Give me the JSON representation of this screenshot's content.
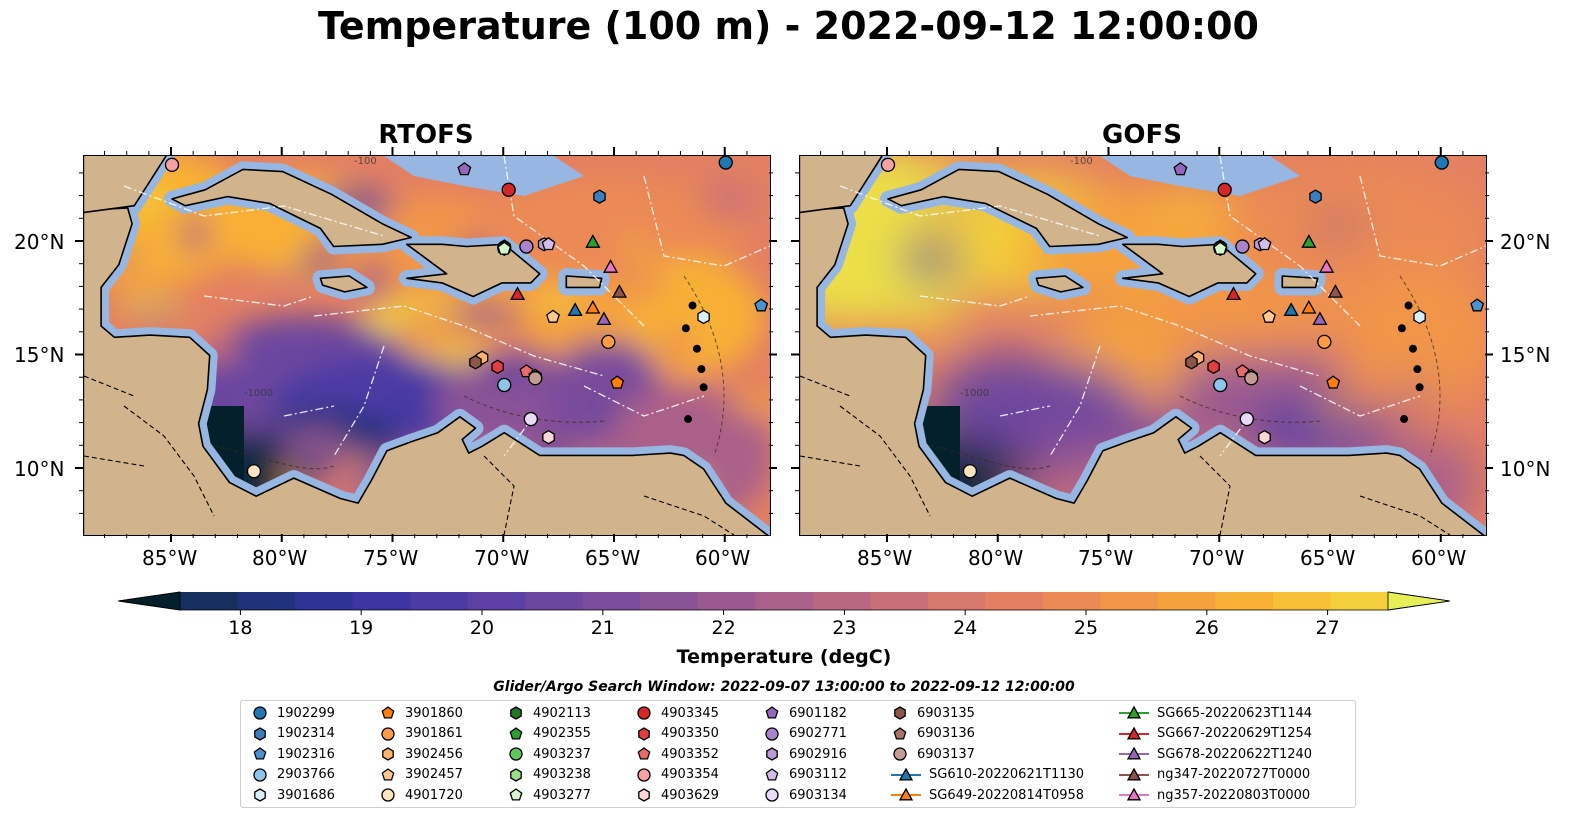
{
  "title": "Temperature (100 m) - 2022-09-12 12:00:00",
  "panels": [
    {
      "title": "RTOFS",
      "style": "rtofs"
    },
    {
      "title": "GOFS",
      "style": "gofs"
    }
  ],
  "map": {
    "lon_ticks": [
      "85°W",
      "80°W",
      "75°W",
      "70°W",
      "65°W",
      "60°W"
    ],
    "lat_ticks": [
      "20°N",
      "15°N",
      "10°N"
    ],
    "land_color": "#d2b48c",
    "shelf_color": "#97b6e1",
    "contour_labels": [
      "-1000",
      "-100"
    ]
  },
  "colorbar": {
    "label": "Temperature (degC)",
    "ticks": [
      "18",
      "19",
      "20",
      "21",
      "22",
      "23",
      "24",
      "25",
      "26",
      "27"
    ],
    "min": 17.5,
    "max": 27.5,
    "extend": "both",
    "colors": [
      "#04202b",
      "#0e2a3f",
      "#172f5e",
      "#22317b",
      "#2f3396",
      "#3d36a2",
      "#4c3ba4",
      "#5c40a3",
      "#6c469f",
      "#7a4c9b",
      "#8a5397",
      "#9a5a90",
      "#aa6189",
      "#b96881",
      "#c86f78",
      "#d7786d",
      "#e38062",
      "#eb8a55",
      "#f19548",
      "#f5a23d",
      "#f7b036",
      "#f6bf35",
      "#f2cf3b",
      "#ecdf47",
      "#e6ef56"
    ]
  },
  "search_window": "Glider/Argo Search Window: 2022-09-07 13:00:00 to 2022-09-12 12:00:00",
  "legend": {
    "columns": [
      [
        {
          "label": "1902299",
          "marker": "circle",
          "color": "#1f77b4"
        },
        {
          "label": "1902314",
          "marker": "hexagon",
          "color": "#3b7fbf"
        },
        {
          "label": "1902316",
          "marker": "pentagon",
          "color": "#4a93d0"
        },
        {
          "label": "2903766",
          "marker": "circle",
          "color": "#8ec5ea"
        },
        {
          "label": "3901686",
          "marker": "hexagon",
          "color": "#d9eefb"
        }
      ],
      [
        {
          "label": "3901860",
          "marker": "pentagon",
          "color": "#ff7f0e"
        },
        {
          "label": "3901861",
          "marker": "circle",
          "color": "#ff9a45"
        },
        {
          "label": "3902456",
          "marker": "hexagon",
          "color": "#ffb26b"
        },
        {
          "label": "3902457",
          "marker": "pentagon",
          "color": "#ffc891"
        },
        {
          "label": "4901720",
          "marker": "circle",
          "color": "#ffe2c0"
        }
      ],
      [
        {
          "label": "4902113",
          "marker": "hexagon",
          "color": "#207a20"
        },
        {
          "label": "4902355",
          "marker": "pentagon",
          "color": "#2ca02c"
        },
        {
          "label": "4903237",
          "marker": "circle",
          "color": "#5cc95c"
        },
        {
          "label": "4903238",
          "marker": "hexagon",
          "color": "#98df8a"
        },
        {
          "label": "4903277",
          "marker": "pentagon",
          "color": "#d4f7cc"
        }
      ],
      [
        {
          "label": "4903345",
          "marker": "circle",
          "color": "#d62728"
        },
        {
          "label": "4903350",
          "marker": "hexagon",
          "color": "#e0403f"
        },
        {
          "label": "4903352",
          "marker": "pentagon",
          "color": "#ea6a6a"
        },
        {
          "label": "4903354",
          "marker": "circle",
          "color": "#f4a3a3"
        },
        {
          "label": "4903629",
          "marker": "hexagon",
          "color": "#fbd6d6"
        }
      ],
      [
        {
          "label": "6901182",
          "marker": "pentagon",
          "color": "#9467bd"
        },
        {
          "label": "6902771",
          "marker": "circle",
          "color": "#a983cc"
        },
        {
          "label": "6902916",
          "marker": "hexagon",
          "color": "#bb9bd8"
        },
        {
          "label": "6903112",
          "marker": "pentagon",
          "color": "#d2bdea"
        },
        {
          "label": "6903134",
          "marker": "circle",
          "color": "#ead9f8"
        }
      ],
      [
        {
          "label": "6903135",
          "marker": "hexagon",
          "color": "#8c564b"
        },
        {
          "label": "6903136",
          "marker": "pentagon",
          "color": "#a87366"
        },
        {
          "label": "6903137",
          "marker": "circle",
          "color": "#c49c94"
        },
        {
          "label": "SG610-20220621T1130",
          "marker": "triangle-line",
          "color": "#1f77b4"
        },
        {
          "label": "SG649-20220814T0958",
          "marker": "triangle-line",
          "color": "#ff7f0e"
        }
      ],
      [
        {
          "label": "SG665-20220623T1144",
          "marker": "triangle-line",
          "color": "#2ca02c"
        },
        {
          "label": "SG667-20220629T1254",
          "marker": "triangle-line",
          "color": "#d62728"
        },
        {
          "label": "SG678-20220622T1240",
          "marker": "triangle-line",
          "color": "#9467bd"
        },
        {
          "label": "ng347-20220727T0000",
          "marker": "triangle-line",
          "color": "#8c564b"
        },
        {
          "label": "ng357-20220803T0000",
          "marker": "triangle-line",
          "color": "#e377c2"
        }
      ]
    ]
  }
}
